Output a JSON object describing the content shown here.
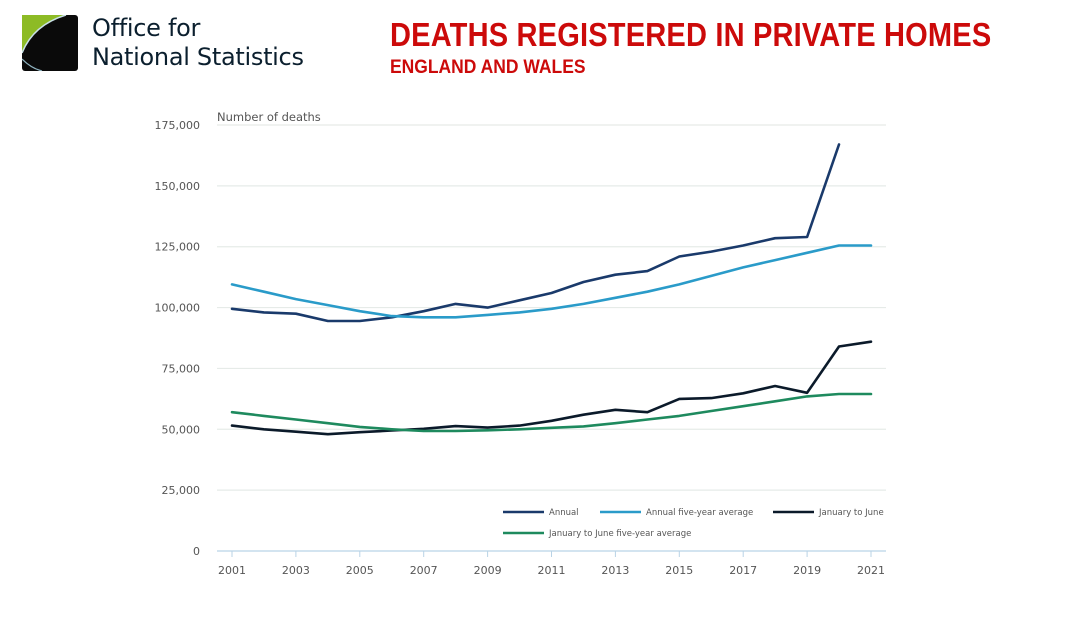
{
  "header": {
    "org_line1": "Office for",
    "org_line2": "National Statistics",
    "title": "DEATHS REGISTERED IN PRIVATE HOMES",
    "subtitle": "ENGLAND AND WALES",
    "title_color": "#cc0a0a",
    "logo_icon": "ons-logo-icon"
  },
  "chart_data": {
    "type": "line",
    "title": "Deaths registered in private homes",
    "subtitle": "England and Wales",
    "xlabel": "",
    "ylabel": "Number of deaths",
    "x": [
      2001,
      2002,
      2003,
      2004,
      2005,
      2006,
      2007,
      2008,
      2009,
      2010,
      2011,
      2012,
      2013,
      2014,
      2015,
      2016,
      2017,
      2018,
      2019,
      2020,
      2021
    ],
    "x_ticks": [
      "2001",
      "2003",
      "2005",
      "2007",
      "2009",
      "2011",
      "2013",
      "2015",
      "2017",
      "2019",
      "2021"
    ],
    "x_tick_values": [
      2001,
      2003,
      2005,
      2007,
      2009,
      2011,
      2013,
      2015,
      2017,
      2019,
      2021
    ],
    "y_ticks": [
      "0",
      "25,000",
      "50,000",
      "75,000",
      "100,000",
      "125,000",
      "150,000",
      "175,000"
    ],
    "y_tick_values": [
      0,
      25000,
      50000,
      75000,
      100000,
      125000,
      150000,
      175000
    ],
    "xlim": [
      2001,
      2021
    ],
    "ylim": [
      0,
      175000
    ],
    "grid": true,
    "legend_position": "bottom-right",
    "series": [
      {
        "name": "Annual",
        "color": "#1a3a6b",
        "values": [
          99500,
          98000,
          97500,
          94500,
          94500,
          96000,
          98500,
          101500,
          100000,
          103000,
          106000,
          110500,
          113500,
          115000,
          121000,
          123000,
          125500,
          128500,
          129000,
          167000,
          null
        ]
      },
      {
        "name": "Annual five-year average",
        "color": "#2a9bc9",
        "values": [
          109500,
          106500,
          103500,
          101000,
          98500,
          96500,
          96000,
          96000,
          97000,
          98000,
          99500,
          101500,
          104000,
          106500,
          109500,
          113000,
          116500,
          119500,
          122500,
          125500,
          125500
        ]
      },
      {
        "name": "January to June",
        "color": "#0b1a2a",
        "values": [
          51500,
          50000,
          49000,
          48000,
          48800,
          49500,
          50200,
          51300,
          50700,
          51500,
          53500,
          56000,
          58000,
          57000,
          62500,
          62800,
          64800,
          67800,
          65000,
          84000,
          86000
        ]
      },
      {
        "name": "January to June five-year average",
        "color": "#1e8a5e",
        "values": [
          57000,
          55500,
          54000,
          52500,
          51000,
          50000,
          49300,
          49300,
          49600,
          50000,
          50600,
          51200,
          52500,
          54000,
          55500,
          57500,
          59500,
          61500,
          63500,
          64500,
          64500
        ]
      }
    ]
  }
}
